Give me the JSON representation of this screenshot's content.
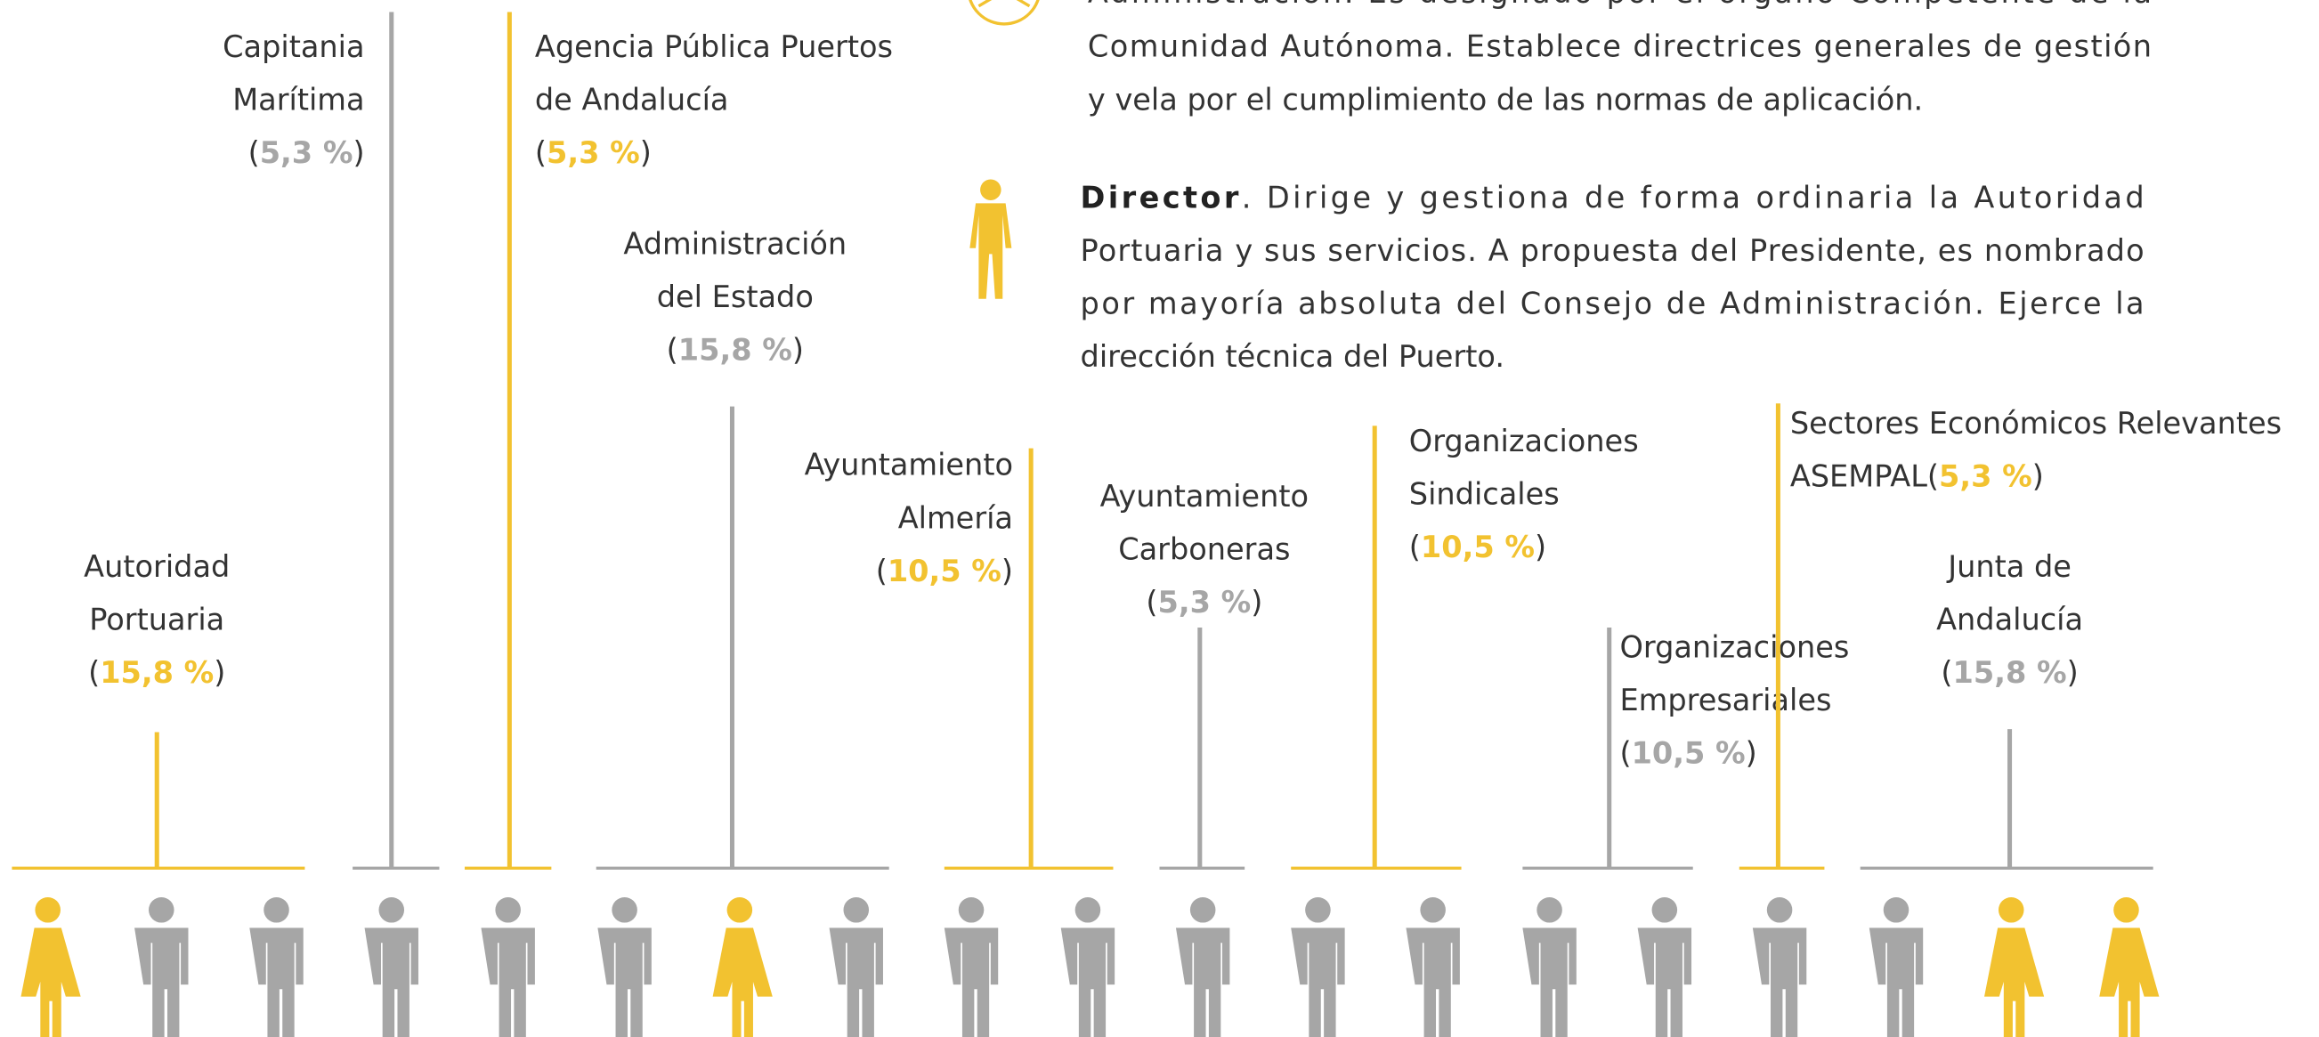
{
  "council_text": {
    "lines": [
      "Administración. Es designado por el órgano Competente de la",
      "Comunidad Autónoma. Establece directrices generales de gestión",
      "y vela por el cumplimiento de las normas de aplicación."
    ]
  },
  "director": {
    "term": "Director",
    "lines": [
      ". Dirige y gestiona de forma ordinaria la Autoridad",
      "Portuaria y sus servicios. A propuesta del Presidente, es nombrado",
      "por mayoría absoluta del Consejo de Administración. Ejerce la",
      "dirección técnica del Puerto."
    ]
  },
  "groups": [
    {
      "label_lines": [
        "Autoridad",
        "Portuaria"
      ],
      "percent": "15,8 %"
    },
    {
      "label_lines": [
        "Capitania",
        "Marítima"
      ],
      "percent": "5,3 %"
    },
    {
      "label_lines": [
        "Agencia Pública Puertos",
        "de Andalucía"
      ],
      "percent": "5,3 %"
    },
    {
      "label_lines": [
        "Administración",
        "del Estado"
      ],
      "percent": "15,8 %"
    },
    {
      "label_lines": [
        "Ayuntamiento",
        "Almería"
      ],
      "percent": "10,5 %"
    },
    {
      "label_lines": [
        "Ayuntamiento",
        "Carboneras"
      ],
      "percent": "5,3 %"
    },
    {
      "label_lines": [
        "Organizaciones",
        "Sindicales"
      ],
      "percent": "10,5 %"
    },
    {
      "label_lines": [
        "Organizaciones",
        "Empresariales"
      ],
      "percent": "10,5 %"
    },
    {
      "label_lines": [
        "Sectores Económicos Relevantes",
        "ASEMPAL"
      ],
      "percent": "5,3 %"
    },
    {
      "label_lines": [
        "Junta de",
        "Andalucía"
      ],
      "percent": "15,8 %"
    }
  ]
}
